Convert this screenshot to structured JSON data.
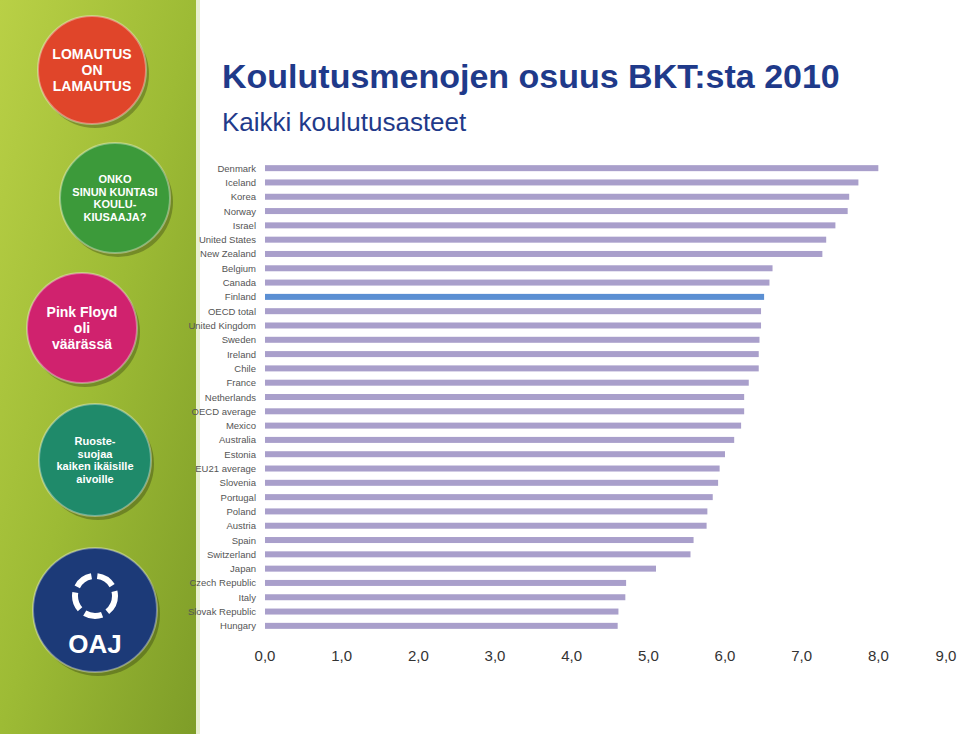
{
  "chart_data": {
    "type": "bar",
    "orientation": "horizontal",
    "title": "Koulutusmenojen osuus BKT:sta 2010",
    "subtitle": "Kaikki koulutusasteet",
    "categories": [
      "Denmark",
      "Iceland",
      "Korea",
      "Norway",
      "Israel",
      "United States",
      "New Zealand",
      "Belgium",
      "Canada",
      "Finland",
      "OECD total",
      "United Kingdom",
      "Sweden",
      "Ireland",
      "Chile",
      "France",
      "Netherlands",
      "OECD average",
      "Mexico",
      "Australia",
      "Estonia",
      "EU21 average",
      "Slovenia",
      "Portugal",
      "Poland",
      "Austria",
      "Spain",
      "Switzerland",
      "Japan",
      "Czech Republic",
      "Italy",
      "Slovak Republic",
      "Hungary"
    ],
    "values": [
      8.0,
      7.74,
      7.62,
      7.6,
      7.44,
      7.32,
      7.27,
      6.62,
      6.58,
      6.51,
      6.47,
      6.47,
      6.45,
      6.44,
      6.44,
      6.31,
      6.25,
      6.25,
      6.21,
      6.12,
      6.0,
      5.93,
      5.91,
      5.84,
      5.77,
      5.76,
      5.59,
      5.55,
      5.1,
      4.71,
      4.7,
      4.61,
      4.6
    ],
    "colors": [
      "#a99fcb",
      "#a99fcb",
      "#a99fcb",
      "#a99fcb",
      "#a99fcb",
      "#a99fcb",
      "#a99fcb",
      "#a99fcb",
      "#a99fcb",
      "#5b8fd3",
      "#a99fcb",
      "#a99fcb",
      "#a99fcb",
      "#a99fcb",
      "#a99fcb",
      "#a99fcb",
      "#a99fcb",
      "#a99fcb",
      "#a99fcb",
      "#a99fcb",
      "#a99fcb",
      "#a99fcb",
      "#a99fcb",
      "#a99fcb",
      "#a99fcb",
      "#a99fcb",
      "#a99fcb",
      "#a99fcb",
      "#a99fcb",
      "#a99fcb",
      "#a99fcb",
      "#a99fcb",
      "#a99fcb"
    ],
    "xlim": [
      0,
      9
    ],
    "xticks": [
      {
        "value": 0,
        "label": "0,0"
      },
      {
        "value": 1,
        "label": "1,0"
      },
      {
        "value": 2,
        "label": "2,0"
      },
      {
        "value": 3,
        "label": "3,0"
      },
      {
        "value": 4,
        "label": "4,0"
      },
      {
        "value": 5,
        "label": "5,0"
      },
      {
        "value": 6,
        "label": "6,0"
      },
      {
        "value": 7,
        "label": "7,0"
      },
      {
        "value": 8,
        "label": "8,0"
      },
      {
        "value": 9,
        "label": "9,0"
      }
    ],
    "grid": false
  },
  "badges": [
    {
      "lines": [
        "LOMAUTUS",
        "ON",
        "LAMAUTUS"
      ],
      "color": "#e0452a"
    },
    {
      "lines": [
        "ONKO",
        "SINUN KUNTASI",
        "KOULU-",
        "KIUSAAJA?"
      ],
      "color": "#3c9a3a"
    },
    {
      "lines": [
        "Pink Floyd",
        "oli",
        "väärässä"
      ],
      "color": "#d0226e"
    },
    {
      "lines": [
        "Ruoste-",
        "suojaa",
        "kaiken ikäisille",
        "aivoille"
      ],
      "color": "#1f8a6a"
    },
    {
      "lines": [
        "OAJ"
      ],
      "color": "#1c3a78"
    }
  ]
}
